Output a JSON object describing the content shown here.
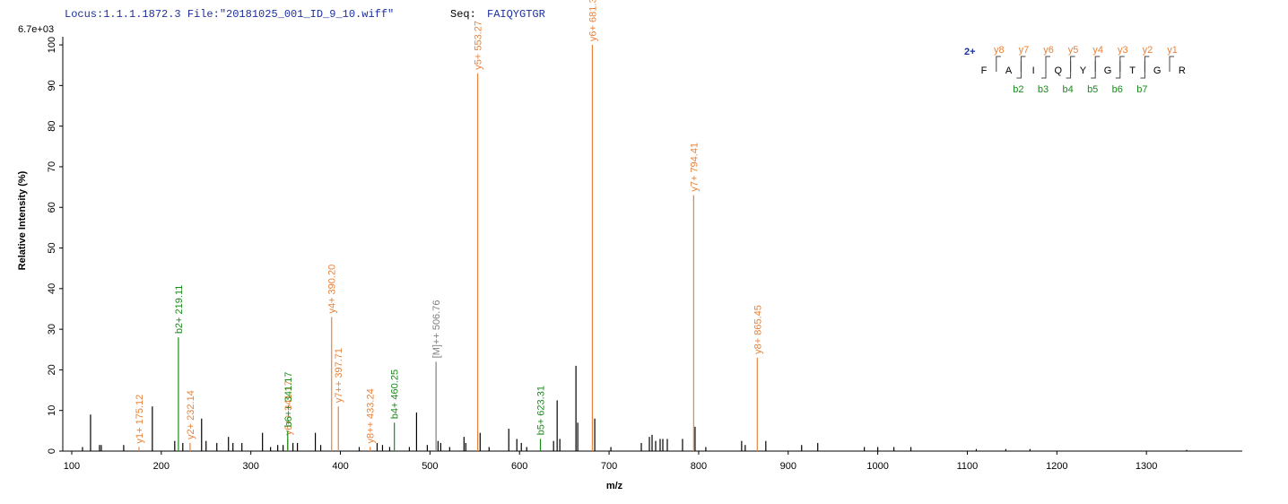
{
  "chart_data": {
    "type": "spectrum",
    "header": {
      "locus_file": "Locus:1.1.1.1872.3 File:\"20181025_001_ID_9_10.wiff\"",
      "seq_label": "Seq:",
      "seq": "FAIQYGTGR"
    },
    "intensity_max": "6.7e+03",
    "y_label": "Relative   Intensity (%)",
    "x_label": "m/z",
    "xlim": [
      90,
      1407
    ],
    "ylim": [
      0,
      102
    ],
    "xticks": [
      100,
      200,
      300,
      400,
      500,
      600,
      700,
      800,
      900,
      1000,
      1100,
      1200,
      1300
    ],
    "yticks": [
      0,
      10,
      20,
      30,
      40,
      50,
      60,
      70,
      80,
      90,
      100
    ],
    "series": [
      {
        "color": "#000000",
        "x": [
          112,
          121,
          131,
          133,
          158,
          190,
          215,
          224,
          245,
          250,
          262,
          275,
          280,
          290,
          313,
          322,
          330,
          336,
          347,
          352,
          372,
          378,
          421,
          441,
          447,
          455,
          477,
          485,
          497,
          509,
          512,
          522,
          538,
          540,
          556,
          566,
          588,
          597,
          602,
          608,
          638,
          642,
          645,
          663,
          665,
          684,
          702,
          736,
          745,
          748,
          752,
          757,
          760,
          765,
          782,
          796,
          808,
          848,
          852,
          875,
          915,
          933,
          985,
          1000,
          1018,
          1037,
          1110,
          1143,
          1170,
          1345
        ],
        "values": [
          1,
          9,
          1.5,
          1.5,
          1.5,
          11,
          2.5,
          2,
          8,
          2.5,
          2,
          3.5,
          2,
          2,
          4.5,
          1,
          1.5,
          1.5,
          2,
          2,
          4.5,
          1.5,
          1,
          2,
          1.5,
          1,
          1,
          9.5,
          1.5,
          2.5,
          2,
          1,
          3.5,
          2,
          4.5,
          1,
          5.5,
          3,
          2,
          1,
          2.5,
          12.5,
          3,
          21,
          7,
          8,
          1,
          2,
          3.5,
          4,
          2.5,
          3,
          3,
          3,
          3,
          6,
          1,
          2.5,
          1.5,
          2.5,
          1.5,
          2,
          1,
          1,
          1,
          1,
          0.5,
          0.5,
          0.5,
          0.3
        ]
      },
      {
        "color": "#e8823a",
        "x": [
          175.12,
          232.14,
          341.17,
          390.2,
          397.71,
          433.24,
          553.27,
          681.33,
          794.41,
          865.45
        ],
        "values": [
          1,
          2,
          3,
          33,
          11,
          1,
          93,
          100,
          63,
          23
        ],
        "peak_labels": [
          "y1+ 175.12",
          "y2+ 232.14",
          "y6++ 341.17",
          "y4+ 390.20",
          "y7++ 397.71",
          "y8++ 433.24",
          "y5+ 553.27",
          "y6+ 681.33",
          "y7+ 794.41",
          "y8+ 865.45"
        ]
      },
      {
        "color": "#1a8a1a",
        "x": [
          219.11,
          341.17,
          460.25,
          623.31
        ],
        "values": [
          28,
          5,
          7,
          3
        ],
        "peak_labels": [
          "b2+ 219.11",
          "b6++ 341.17",
          "b4+ 460.25",
          "b5+ 623.31"
        ]
      },
      {
        "color": "#808080",
        "x": [
          506.76
        ],
        "values": [
          22
        ],
        "peak_labels": [
          "[M]++ 506.76"
        ]
      }
    ],
    "sequence": {
      "charge": "2+",
      "residues": [
        "F",
        "A",
        "I",
        "Q",
        "Y",
        "G",
        "T",
        "G",
        "R"
      ],
      "y_ions": [
        "y8",
        "y7",
        "y6",
        "y5",
        "y4",
        "y3",
        "y2",
        "y1"
      ],
      "b_ions": [
        "b2",
        "b3",
        "b4",
        "b5",
        "b6",
        "b7"
      ],
      "y_color": "#e8823a",
      "b_color": "#1a8a1a"
    }
  }
}
